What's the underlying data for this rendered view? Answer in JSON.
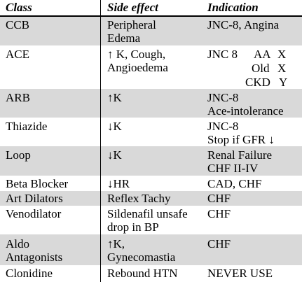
{
  "headers": [
    "Class",
    "Side effect",
    "Indication"
  ],
  "rows": [
    {
      "class": "CCB",
      "side_effect": [
        "Peripheral",
        "Edema"
      ],
      "indication": [
        "JNC-8, Angina"
      ]
    },
    {
      "class": "ACE",
      "side_effect": [
        "↑ K, Cough,",
        "Angioedema"
      ],
      "indication_table": {
        "label": "JNC 8",
        "lines": [
          [
            "AA",
            "X"
          ],
          [
            "Old",
            "X"
          ],
          [
            "CKD",
            "Y"
          ]
        ]
      }
    },
    {
      "class": "ARB",
      "side_effect": [
        "↑K"
      ],
      "indication": [
        "JNC-8",
        "Ace-intolerance"
      ]
    },
    {
      "class": "Thiazide",
      "side_effect": [
        "↓K"
      ],
      "indication": [
        "JNC-8",
        "Stop if GFR ↓"
      ]
    },
    {
      "class": "Loop",
      "side_effect": [
        "↓K"
      ],
      "indication": [
        "Renal Failure",
        "CHF II-IV"
      ]
    },
    {
      "class": "Beta Blocker",
      "side_effect": [
        "↓HR"
      ],
      "indication": [
        "CAD, CHF"
      ]
    },
    {
      "class": "Art Dilators",
      "side_effect": [
        "Reflex Tachy"
      ],
      "indication": [
        "CHF"
      ]
    },
    {
      "class": "Venodilator",
      "side_effect": [
        "Sildenafil unsafe",
        "drop in BP"
      ],
      "indication": [
        "CHF"
      ]
    },
    {
      "class": [
        "Aldo",
        "Antagonists"
      ],
      "side_effect": [
        "↑K,",
        "Gynecomastia"
      ],
      "indication": [
        "CHF"
      ]
    },
    {
      "class": "Clonidine",
      "side_effect": [
        "Rebound HTN"
      ],
      "indication": [
        "NEVER USE"
      ]
    }
  ],
  "colors": {
    "shade": "#d9d9d9",
    "rule": "#000000"
  }
}
